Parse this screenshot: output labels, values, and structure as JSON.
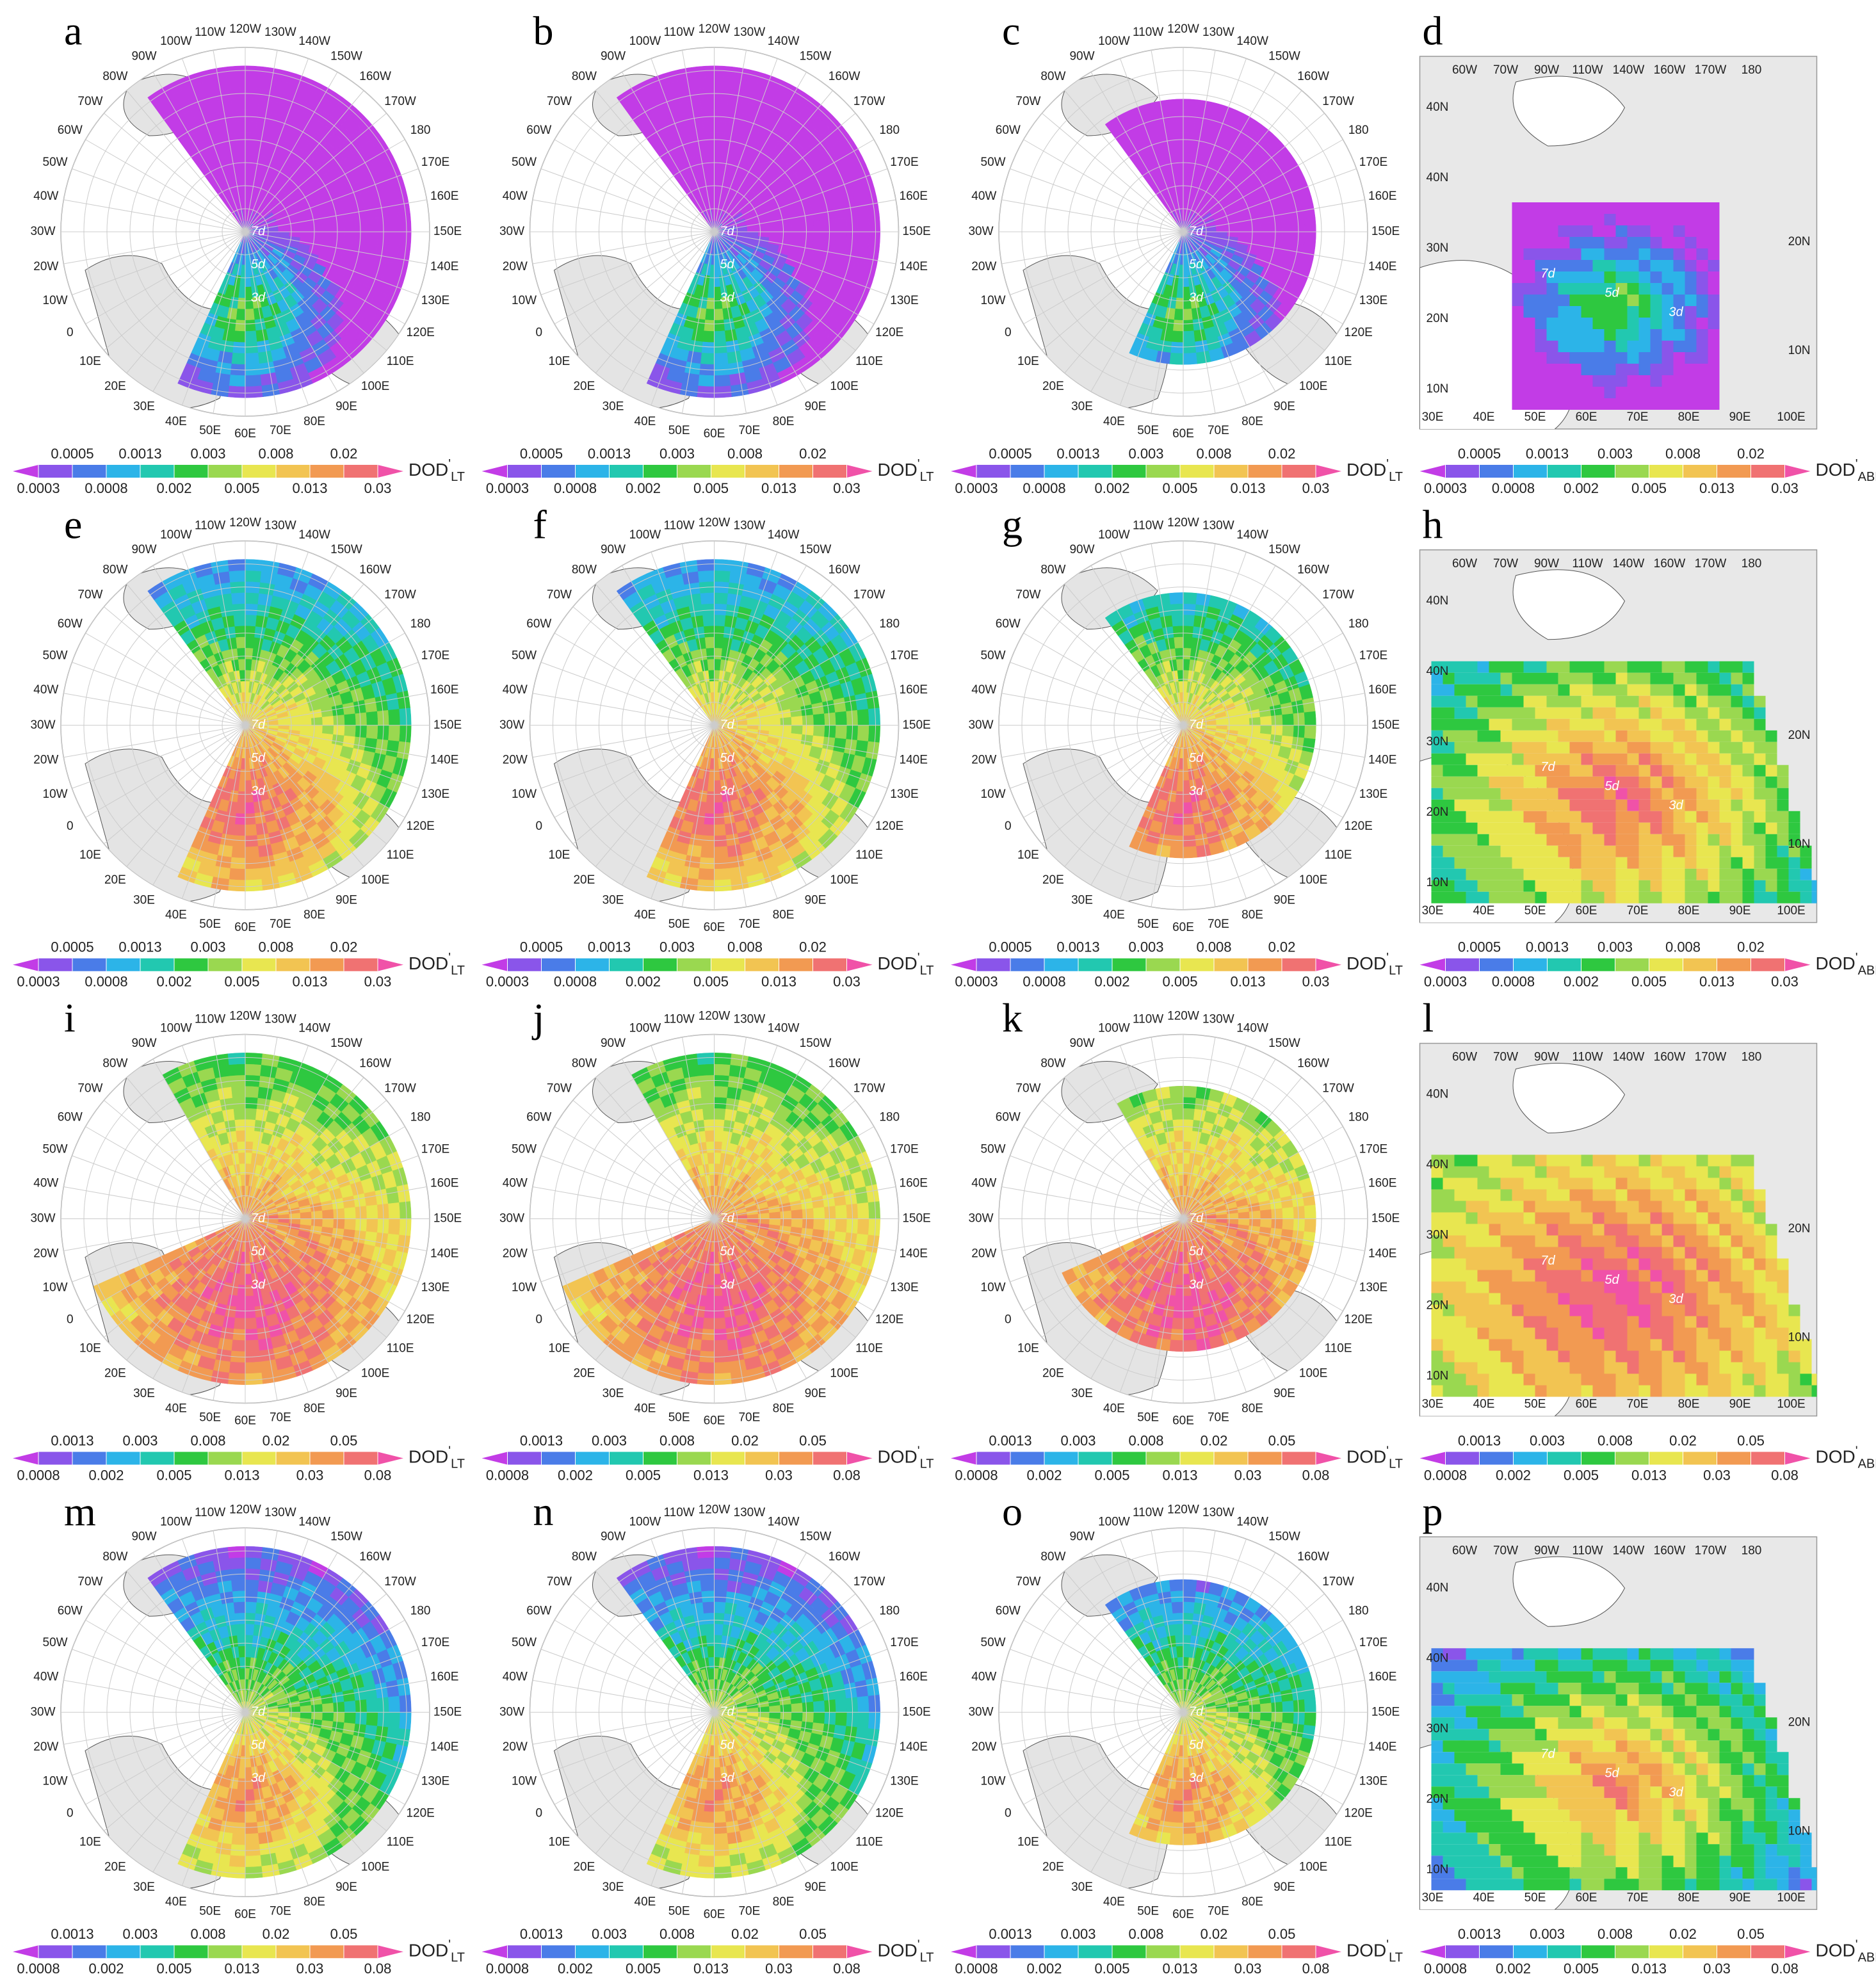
{
  "var_base": "DOD",
  "var_sup": "'",
  "colors": [
    "#c23ce6",
    "#8a55ea",
    "#4a7ce8",
    "#2cb4e8",
    "#22c8b0",
    "#2ec840",
    "#9ad850",
    "#e8e650",
    "#f2c452",
    "#f29a52",
    "#f07272",
    "#f052a8"
  ],
  "colorbars": [
    {
      "upper_ticks": [
        0.0005,
        0.0013,
        0.003,
        0.008,
        0.02
      ],
      "lower_ticks": [
        0.0003,
        0.0008,
        0.002,
        0.005,
        0.013,
        0.03
      ]
    },
    {
      "upper_ticks": [
        0.0013,
        0.003,
        0.008,
        0.02,
        0.05
      ],
      "lower_ticks": [
        0.0008,
        0.002,
        0.005,
        0.013,
        0.03,
        0.08
      ]
    }
  ],
  "polar_lon_labels": [
    "120W",
    "130W",
    "140W",
    "150W",
    "160W",
    "170W",
    "180",
    "170E",
    "160E",
    "150E",
    "140E",
    "130E",
    "120E",
    "110E",
    "100E",
    "90E",
    "80E",
    "70E",
    "60E",
    "50E",
    "40E",
    "30E",
    "20E",
    "10E",
    "0",
    "10W",
    "20W",
    "30W",
    "40W",
    "50W",
    "60W",
    "70W",
    "80W",
    "90W",
    "100W",
    "110W"
  ],
  "regional_labels": {
    "top": [
      "60W",
      "70W",
      "90W",
      "110W",
      "140W",
      "160W",
      "170W",
      "180"
    ],
    "left": [
      "40N",
      "40N",
      "30N",
      "20N",
      "10N"
    ],
    "bottom": [
      "30E",
      "40E",
      "50E",
      "60E",
      "70E",
      "80E",
      "90E",
      "100E"
    ],
    "right": [
      "20N",
      "10N"
    ]
  },
  "contour_labels": [
    "7d",
    "5d",
    "3d"
  ],
  "panels": [
    {
      "label": "a",
      "kind": "polar",
      "scale": 0,
      "var_sub": "LT"
    },
    {
      "label": "b",
      "kind": "polar",
      "scale": 0,
      "var_sub": "LT"
    },
    {
      "label": "c",
      "kind": "polar",
      "scale": 0,
      "var_sub": "LT"
    },
    {
      "label": "d",
      "kind": "regional",
      "scale": 0,
      "var_sub": "ABL"
    },
    {
      "label": "e",
      "kind": "polar",
      "scale": 0,
      "var_sub": "LT"
    },
    {
      "label": "f",
      "kind": "polar",
      "scale": 0,
      "var_sub": "LT"
    },
    {
      "label": "g",
      "kind": "polar",
      "scale": 0,
      "var_sub": "LT"
    },
    {
      "label": "h",
      "kind": "regional",
      "scale": 0,
      "var_sub": "ABL"
    },
    {
      "label": "i",
      "kind": "polar",
      "scale": 1,
      "var_sub": "LT"
    },
    {
      "label": "j",
      "kind": "polar",
      "scale": 1,
      "var_sub": "LT"
    },
    {
      "label": "k",
      "kind": "polar",
      "scale": 1,
      "var_sub": "LT"
    },
    {
      "label": "l",
      "kind": "regional",
      "scale": 1,
      "var_sub": "ABL"
    },
    {
      "label": "m",
      "kind": "polar",
      "scale": 1,
      "var_sub": "LT"
    },
    {
      "label": "n",
      "kind": "polar",
      "scale": 1,
      "var_sub": "LT"
    },
    {
      "label": "o",
      "kind": "polar",
      "scale": 1,
      "var_sub": "LT"
    },
    {
      "label": "p",
      "kind": "regional",
      "scale": 1,
      "var_sub": "ABL"
    }
  ]
}
